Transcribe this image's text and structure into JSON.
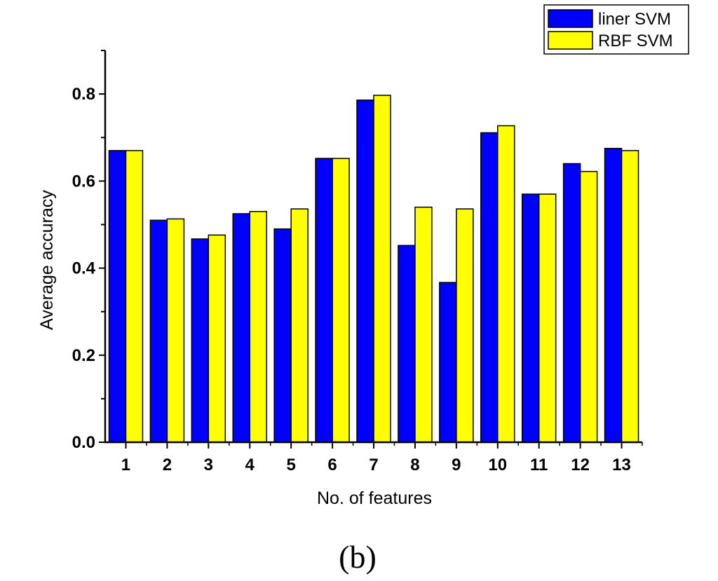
{
  "chart_data": {
    "type": "bar",
    "title": "",
    "xlabel": "No. of features",
    "ylabel": "Average accuracy",
    "categories": [
      "1",
      "2",
      "3",
      "4",
      "5",
      "6",
      "7",
      "8",
      "9",
      "10",
      "11",
      "12",
      "13"
    ],
    "series": [
      {
        "name": "liner SVM",
        "color": "#0000ff",
        "values": [
          0.67,
          0.51,
          0.467,
          0.525,
          0.49,
          0.652,
          0.786,
          0.452,
          0.367,
          0.711,
          0.57,
          0.64,
          0.675
        ]
      },
      {
        "name": "RBF SVM",
        "color": "#ffff00",
        "values": [
          0.67,
          0.513,
          0.476,
          0.53,
          0.536,
          0.652,
          0.797,
          0.54,
          0.536,
          0.727,
          0.57,
          0.622,
          0.67
        ]
      }
    ],
    "ylim": [
      0,
      0.9
    ],
    "yticks": [
      "0.0",
      "0.2",
      "0.4",
      "0.6",
      "0.8"
    ],
    "legend": "top-right",
    "grid": false
  },
  "caption": "(b)"
}
